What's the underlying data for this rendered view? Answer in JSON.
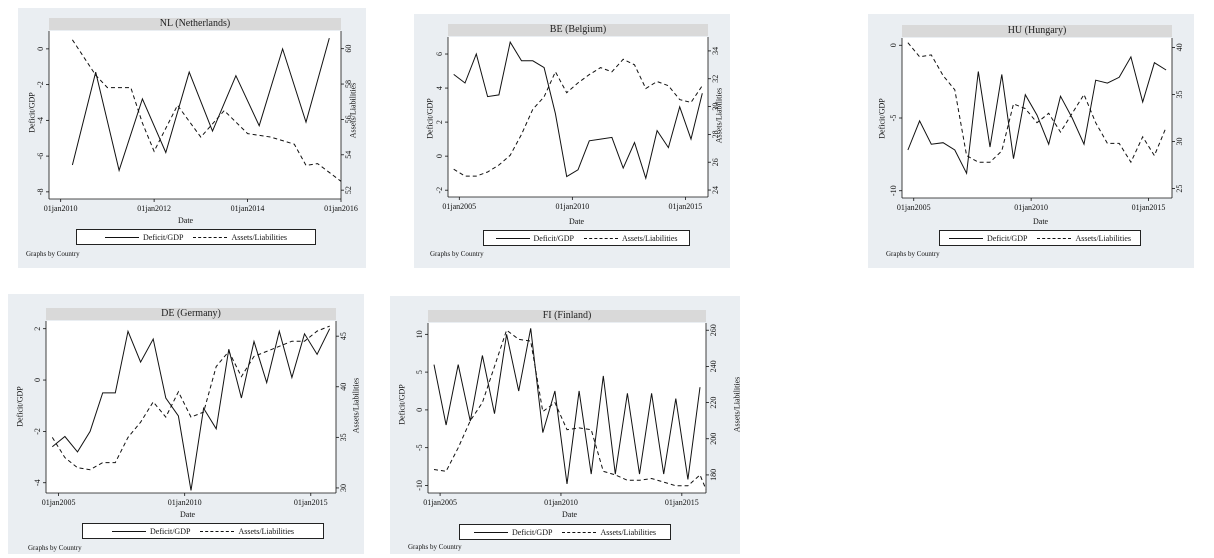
{
  "footer_text": "Graphs by Country",
  "colors": {
    "panel_bg": "#eaeef2",
    "plot_bg": "#ffffff",
    "title_bg": "#d9d9d9",
    "line": "#111111"
  },
  "chart_data": [
    {
      "type": "line",
      "title": "NL (Netherlands)",
      "xlabel": "Date",
      "ylabel_left": "Deficit/GDP",
      "ylabel_right": "Assets/Liabilities",
      "xlim": [
        2009.75,
        2016.0
      ],
      "x_ticks": [
        {
          "v": 2010,
          "label": "01jan2010"
        },
        {
          "v": 2012,
          "label": "01jan2012"
        },
        {
          "v": 2014,
          "label": "01jan2014"
        },
        {
          "v": 2016,
          "label": "01jan2016"
        }
      ],
      "ylim_left": [
        -8.4,
        1.0
      ],
      "ylim_right": [
        51.5,
        61.0
      ],
      "y_ticks_left": [
        0,
        -2,
        -4,
        -6,
        -8
      ],
      "y_ticks_right": [
        52,
        54,
        56,
        58,
        60
      ],
      "series": [
        {
          "name": "Deficit/GDP",
          "axis": "left",
          "style": "solid",
          "x": [
            2010.25,
            2010.75,
            2011.25,
            2011.75,
            2012.25,
            2012.75,
            2013.25,
            2013.75,
            2014.25,
            2014.75,
            2015.25,
            2015.75
          ],
          "y": [
            -6.5,
            -1.3,
            -6.8,
            -2.8,
            -5.8,
            -1.3,
            -4.6,
            -1.5,
            -4.3,
            0.0,
            -4.1,
            0.6
          ]
        },
        {
          "name": "Assets/Liabilities",
          "axis": "right",
          "style": "dashed",
          "x": [
            2010.25,
            2010.75,
            2011.0,
            2011.5,
            2011.75,
            2012.0,
            2012.5,
            2013.0,
            2013.5,
            2014.0,
            2014.5,
            2015.0,
            2015.25,
            2015.5,
            2016.0
          ],
          "y": [
            60.5,
            58.5,
            57.8,
            57.8,
            55.8,
            54.2,
            56.8,
            55.0,
            56.5,
            55.2,
            55.0,
            54.6,
            53.4,
            53.5,
            52.5
          ]
        }
      ]
    },
    {
      "type": "line",
      "title": "BE (Belgium)",
      "xlabel": "Date",
      "ylabel_left": "Deficit/GDP",
      "ylabel_right": "Assets/Liabilities",
      "xlim": [
        2004.5,
        2016.0
      ],
      "x_ticks": [
        {
          "v": 2005,
          "label": "01jan2005"
        },
        {
          "v": 2010,
          "label": "01jan2010"
        },
        {
          "v": 2015,
          "label": "01jan2015"
        }
      ],
      "ylim_left": [
        -2.4,
        7.0
      ],
      "ylim_right": [
        23.5,
        35.0
      ],
      "y_ticks_left": [
        6,
        4,
        2,
        0,
        -2
      ],
      "y_ticks_right": [
        34,
        32,
        30,
        28,
        26,
        24
      ],
      "series": [
        {
          "name": "Deficit/GDP",
          "axis": "left",
          "style": "solid",
          "x": [
            2004.75,
            2005.25,
            2005.75,
            2006.25,
            2006.75,
            2007.25,
            2007.75,
            2008.25,
            2008.75,
            2009.25,
            2009.75,
            2010.25,
            2010.75,
            2011.25,
            2011.75,
            2012.25,
            2012.75,
            2013.25,
            2013.75,
            2014.25,
            2014.75,
            2015.25,
            2015.75
          ],
          "y": [
            4.8,
            4.3,
            6.0,
            3.5,
            3.6,
            6.7,
            5.6,
            5.6,
            5.2,
            2.5,
            -1.2,
            -0.8,
            0.9,
            1.0,
            1.1,
            -0.7,
            0.8,
            -1.3,
            1.5,
            0.5,
            2.9,
            1.0,
            3.7
          ]
        },
        {
          "name": "Assets/Liabilities",
          "axis": "right",
          "style": "dashed",
          "x": [
            2004.75,
            2005.25,
            2005.75,
            2006.25,
            2006.75,
            2007.25,
            2007.75,
            2008.25,
            2008.75,
            2009.25,
            2009.75,
            2010.25,
            2010.75,
            2011.25,
            2011.75,
            2012.25,
            2012.75,
            2013.25,
            2013.75,
            2014.25,
            2014.75,
            2015.25,
            2015.75
          ],
          "y": [
            25.5,
            25.0,
            25.0,
            25.3,
            25.8,
            26.5,
            28.0,
            29.8,
            30.7,
            32.5,
            31.0,
            31.7,
            32.3,
            32.8,
            32.5,
            33.4,
            33.0,
            31.3,
            31.8,
            31.5,
            30.5,
            30.3,
            31.5
          ]
        }
      ]
    },
    {
      "type": "line",
      "title": "HU (Hungary)",
      "xlabel": "Date",
      "ylabel_left": "Deficit/GDP",
      "ylabel_right": "",
      "xlim": [
        2004.5,
        2016.0
      ],
      "x_ticks": [
        {
          "v": 2005,
          "label": "01jan2005"
        },
        {
          "v": 2010,
          "label": "01jan2010"
        },
        {
          "v": 2015,
          "label": "01jan2015"
        }
      ],
      "ylim_left": [
        -10.5,
        0.5
      ],
      "ylim_right": [
        24.0,
        41.0
      ],
      "y_ticks_left": [
        0,
        -5,
        -10
      ],
      "y_ticks_right": [
        40,
        35,
        30,
        25
      ],
      "series": [
        {
          "name": "Deficit/GDP",
          "axis": "left",
          "style": "solid",
          "x": [
            2004.75,
            2005.25,
            2005.75,
            2006.25,
            2006.75,
            2007.25,
            2007.75,
            2008.25,
            2008.75,
            2009.25,
            2009.75,
            2010.25,
            2010.75,
            2011.25,
            2011.75,
            2012.25,
            2012.75,
            2013.25,
            2013.75,
            2014.25,
            2014.75,
            2015.25,
            2015.75
          ],
          "y": [
            -7.2,
            -5.2,
            -6.8,
            -6.7,
            -7.2,
            -8.8,
            -1.8,
            -7.0,
            -2.0,
            -7.8,
            -3.4,
            -4.8,
            -6.8,
            -3.5,
            -5.0,
            -6.8,
            -2.4,
            -2.6,
            -2.2,
            -0.8,
            -3.9,
            -1.2,
            -1.7
          ]
        },
        {
          "name": "Assets/Liabilities",
          "axis": "right",
          "style": "dashed",
          "x": [
            2004.75,
            2005.25,
            2005.75,
            2006.25,
            2006.75,
            2007.25,
            2007.75,
            2008.25,
            2008.75,
            2009.25,
            2009.75,
            2010.25,
            2010.75,
            2011.25,
            2011.75,
            2012.25,
            2012.75,
            2013.25,
            2013.75,
            2014.25,
            2014.75,
            2015.25,
            2015.75
          ],
          "y": [
            40.5,
            39.0,
            39.2,
            37.0,
            35.5,
            28.5,
            27.8,
            27.8,
            29.0,
            34.0,
            33.5,
            32.0,
            33.0,
            31.0,
            33.0,
            35.0,
            32.0,
            29.8,
            29.8,
            27.8,
            30.5,
            28.5,
            31.5
          ]
        }
      ]
    },
    {
      "type": "line",
      "title": "DE (Germany)",
      "xlabel": "Date",
      "ylabel_left": "Deficit/GDP",
      "ylabel_right": "Assets/Liabilities",
      "xlim": [
        2004.5,
        2016.0
      ],
      "x_ticks": [
        {
          "v": 2005,
          "label": "01jan2005"
        },
        {
          "v": 2010,
          "label": "01jan2010"
        },
        {
          "v": 2015,
          "label": "01jan2015"
        }
      ],
      "ylim_left": [
        -4.4,
        2.3
      ],
      "ylim_right": [
        29.5,
        46.5
      ],
      "y_ticks_left": [
        2,
        0,
        -2,
        -4
      ],
      "y_ticks_right": [
        45,
        40,
        35,
        30
      ],
      "series": [
        {
          "name": "Deficit/GDP",
          "axis": "left",
          "style": "solid",
          "x": [
            2004.75,
            2005.25,
            2005.75,
            2006.25,
            2006.75,
            2007.25,
            2007.75,
            2008.25,
            2008.75,
            2009.25,
            2009.75,
            2010.25,
            2010.75,
            2011.25,
            2011.75,
            2012.25,
            2012.75,
            2013.25,
            2013.75,
            2014.25,
            2014.75,
            2015.25,
            2015.75
          ],
          "y": [
            -2.6,
            -2.2,
            -2.8,
            -2.0,
            -0.5,
            -0.5,
            1.9,
            0.7,
            1.6,
            -0.7,
            -1.4,
            -4.3,
            -1.1,
            -1.9,
            1.2,
            -0.7,
            1.5,
            -0.1,
            1.9,
            0.1,
            1.8,
            1.0,
            2.0
          ]
        },
        {
          "name": "Assets/Liabilities",
          "axis": "right",
          "style": "dashed",
          "x": [
            2004.75,
            2005.25,
            2005.75,
            2006.25,
            2006.75,
            2007.25,
            2007.75,
            2008.25,
            2008.75,
            2009.25,
            2009.75,
            2010.25,
            2010.75,
            2011.25,
            2011.75,
            2012.25,
            2012.75,
            2013.25,
            2013.75,
            2014.25,
            2014.75,
            2015.25,
            2015.75
          ],
          "y": [
            35.0,
            33.0,
            32.0,
            31.8,
            32.5,
            32.5,
            35.0,
            36.5,
            38.5,
            37.0,
            39.5,
            37.0,
            37.5,
            42.0,
            43.5,
            41.0,
            43.0,
            43.5,
            44.0,
            44.5,
            44.5,
            45.5,
            46.0
          ]
        }
      ]
    },
    {
      "type": "line",
      "title": "FI (Finland)",
      "xlabel": "Date",
      "ylabel_left": "Deficit/GDP",
      "ylabel_right": "Assets/Liabilities",
      "xlim": [
        2004.5,
        2016.0
      ],
      "x_ticks": [
        {
          "v": 2005,
          "label": "01jan2005"
        },
        {
          "v": 2010,
          "label": "01jan2010"
        },
        {
          "v": 2015,
          "label": "01jan2015"
        }
      ],
      "ylim_left": [
        -11.0,
        11.5
      ],
      "ylim_right": [
        170.0,
        264.0
      ],
      "y_ticks_left": [
        10,
        5,
        0,
        -5,
        -10
      ],
      "y_ticks_right": [
        260,
        240,
        220,
        200,
        180
      ],
      "series": [
        {
          "name": "Deficit/GDP",
          "axis": "left",
          "style": "solid",
          "x": [
            2004.75,
            2005.25,
            2005.75,
            2006.25,
            2006.75,
            2007.25,
            2007.75,
            2008.25,
            2008.75,
            2009.25,
            2009.75,
            2010.25,
            2010.75,
            2011.25,
            2011.75,
            2012.25,
            2012.75,
            2013.25,
            2013.75,
            2014.25,
            2014.75,
            2015.25,
            2015.75
          ],
          "y": [
            6.0,
            -2.0,
            6.0,
            -1.5,
            7.2,
            -0.5,
            10.0,
            2.5,
            10.8,
            -3.0,
            2.5,
            -9.8,
            2.5,
            -8.5,
            4.5,
            -8.5,
            2.2,
            -8.5,
            2.2,
            -8.5,
            1.5,
            -9.2,
            3.0
          ]
        },
        {
          "name": "Assets/Liabilities",
          "axis": "right",
          "style": "dashed",
          "x": [
            2004.75,
            2005.25,
            2005.75,
            2006.25,
            2006.75,
            2007.25,
            2007.75,
            2008.25,
            2008.75,
            2009.25,
            2009.75,
            2010.25,
            2010.75,
            2011.25,
            2011.75,
            2012.25,
            2012.75,
            2013.25,
            2013.75,
            2014.25,
            2014.75,
            2015.25,
            2015.75,
            2016.0
          ],
          "y": [
            183.0,
            182.0,
            195.0,
            210.0,
            220.0,
            240.0,
            260.0,
            255.0,
            254.0,
            215.0,
            220.0,
            205.0,
            206.0,
            205.0,
            182.0,
            180.0,
            177.0,
            177.0,
            178.0,
            176.0,
            174.0,
            174.0,
            180.0,
            172.0
          ]
        }
      ]
    }
  ]
}
